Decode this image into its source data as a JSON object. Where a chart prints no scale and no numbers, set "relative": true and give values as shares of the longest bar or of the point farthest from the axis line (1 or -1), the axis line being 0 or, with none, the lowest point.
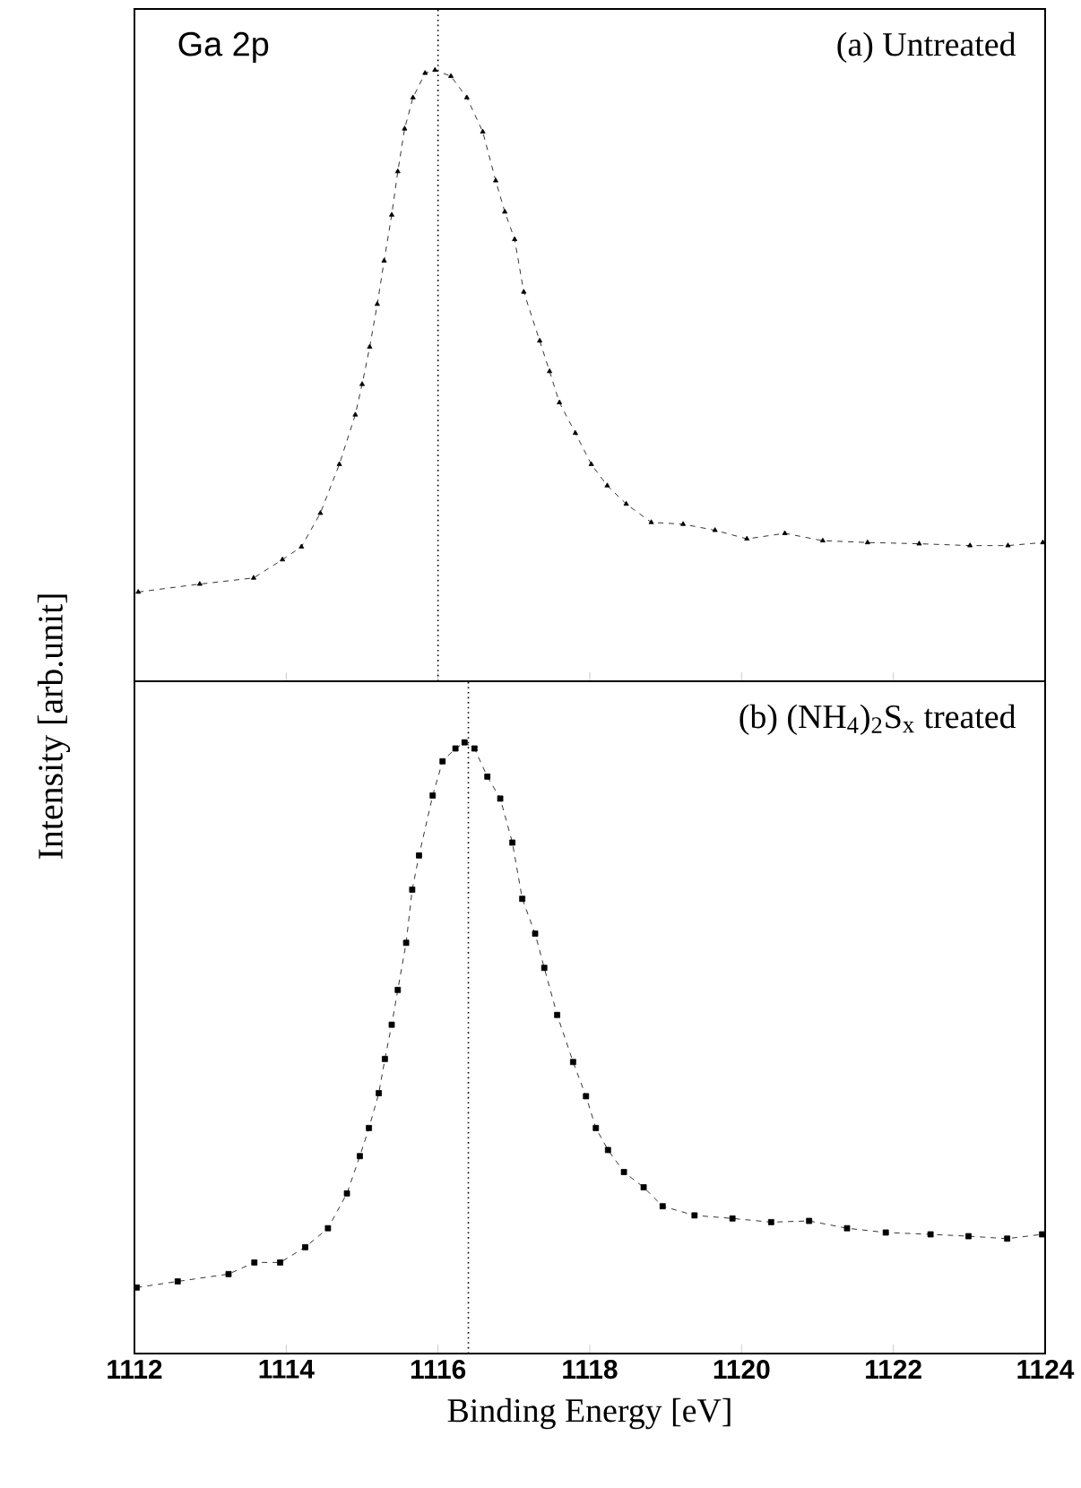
{
  "chart_data": [
    {
      "type": "line",
      "relative": true,
      "marker": "triangle",
      "line_style": "dashed",
      "tick_labels": false,
      "ylabel": "Intensity [arb.unit]",
      "annotations": [
        "Ga 2p",
        "(a) Untreated"
      ],
      "xlim": [
        1112,
        1124
      ],
      "xticks": [
        1112,
        1114,
        1116,
        1118,
        1120,
        1122,
        1124
      ],
      "ref_lines": [
        {
          "axis": "x",
          "value": 1116,
          "line_style": "dotted"
        }
      ],
      "series": [
        {
          "color": "#000000",
          "x": [
            1112.05,
            1112.86,
            1113.57,
            1113.95,
            1114.2,
            1114.45,
            1114.7,
            1114.91,
            1115.0,
            1115.1,
            1115.2,
            1115.29,
            1115.39,
            1115.47,
            1115.56,
            1115.67,
            1115.83,
            1115.96,
            1116.17,
            1116.38,
            1116.59,
            1116.76,
            1116.88,
            1117.01,
            1117.13,
            1117.34,
            1117.47,
            1117.6,
            1117.81,
            1118.02,
            1118.23,
            1118.48,
            1118.81,
            1119.23,
            1119.65,
            1120.07,
            1120.57,
            1121.07,
            1121.66,
            1122.34,
            1123.01,
            1123.51,
            1123.97
          ],
          "values": [
            0.146,
            0.159,
            0.169,
            0.199,
            0.22,
            0.275,
            0.355,
            0.436,
            0.486,
            0.547,
            0.617,
            0.688,
            0.763,
            0.834,
            0.904,
            0.955,
            0.995,
            1.0,
            0.99,
            0.955,
            0.899,
            0.819,
            0.768,
            0.723,
            0.637,
            0.557,
            0.507,
            0.456,
            0.406,
            0.355,
            0.32,
            0.29,
            0.26,
            0.257,
            0.247,
            0.233,
            0.242,
            0.23,
            0.227,
            0.225,
            0.222,
            0.222,
            0.227
          ]
        }
      ]
    },
    {
      "type": "line",
      "relative": true,
      "marker": "square",
      "line_style": "dashed",
      "tick_labels": "x",
      "xlabel": "Binding Energy [eV]",
      "annotations": [
        "(b) (NH$_{4}$)$_{2}$S$_{x}$ treated"
      ],
      "xlim": [
        1112,
        1124
      ],
      "xticks": [
        1112,
        1114,
        1116,
        1118,
        1120,
        1122,
        1124
      ],
      "ref_lines": [
        {
          "axis": "x",
          "value": 1116.4,
          "line_style": "dotted"
        }
      ],
      "series": [
        {
          "color": "#000000",
          "x": [
            1112.03,
            1112.57,
            1113.24,
            1113.58,
            1113.92,
            1114.25,
            1114.55,
            1114.8,
            1114.97,
            1115.09,
            1115.22,
            1115.3,
            1115.39,
            1115.47,
            1115.58,
            1115.66,
            1115.75,
            1115.93,
            1116.06,
            1116.23,
            1116.35,
            1116.48,
            1116.65,
            1116.82,
            1116.98,
            1117.11,
            1117.28,
            1117.4,
            1117.57,
            1117.78,
            1117.95,
            1118.08,
            1118.24,
            1118.45,
            1118.71,
            1118.96,
            1119.38,
            1119.88,
            1120.39,
            1120.89,
            1121.39,
            1121.9,
            1122.49,
            1122.99,
            1123.5,
            1123.96
          ],
          "values": [
            0.108,
            0.118,
            0.13,
            0.149,
            0.149,
            0.174,
            0.205,
            0.262,
            0.323,
            0.369,
            0.426,
            0.482,
            0.538,
            0.595,
            0.672,
            0.759,
            0.815,
            0.913,
            0.969,
            0.99,
            1.0,
            0.99,
            0.944,
            0.908,
            0.836,
            0.744,
            0.687,
            0.631,
            0.554,
            0.477,
            0.421,
            0.369,
            0.333,
            0.297,
            0.272,
            0.241,
            0.226,
            0.221,
            0.215,
            0.217,
            0.205,
            0.198,
            0.195,
            0.192,
            0.188,
            0.195
          ]
        }
      ]
    }
  ]
}
